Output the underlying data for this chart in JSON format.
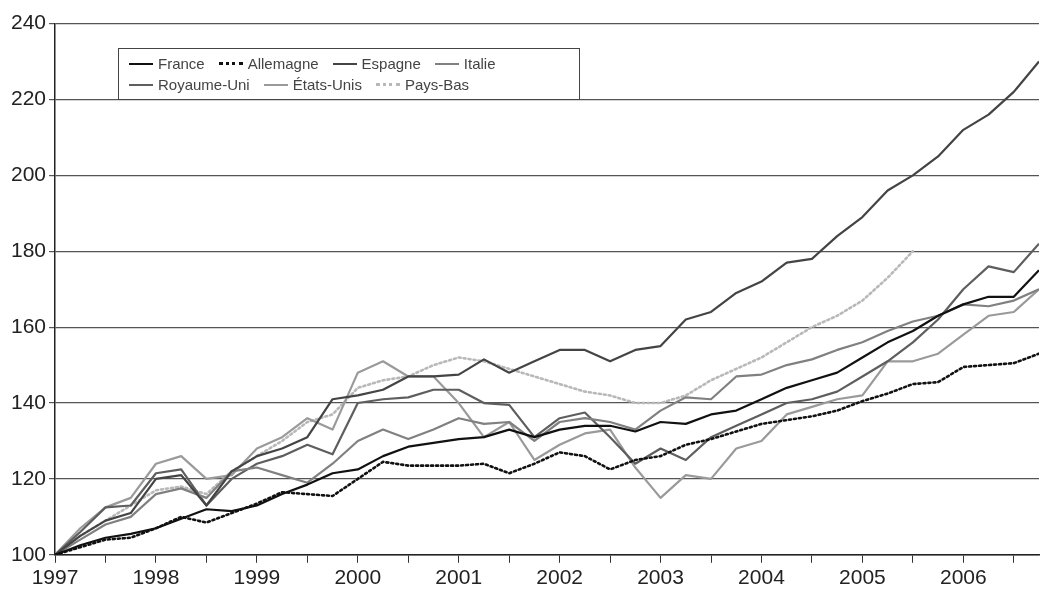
{
  "chart_data": {
    "type": "line",
    "x": [
      1997,
      1997.25,
      1997.5,
      1997.75,
      1998,
      1998.25,
      1998.5,
      1998.75,
      1999,
      1999.25,
      1999.5,
      1999.75,
      2000,
      2000.25,
      2000.5,
      2000.75,
      2001,
      2001.25,
      2001.5,
      2001.75,
      2002,
      2002.25,
      2002.5,
      2002.75,
      2003,
      2003.25,
      2003.5,
      2003.75,
      2004,
      2004.25,
      2004.5,
      2004.75,
      2005,
      2005.25,
      2005.5,
      2005.75,
      2006,
      2006.25,
      2006.5,
      2006.75
    ],
    "series": [
      {
        "name": "France",
        "color": "#111111",
        "line_style": "solid",
        "values": [
          100,
          102.5,
          104.5,
          105.5,
          107,
          109.5,
          112,
          111.5,
          113,
          116,
          118.5,
          121.5,
          122.5,
          126,
          128.5,
          129.5,
          130.5,
          131,
          133,
          131,
          133,
          134,
          134,
          132.5,
          135,
          134.5,
          137,
          138,
          141,
          144,
          146,
          148,
          152,
          156,
          159,
          163,
          166,
          168,
          168,
          175
        ]
      },
      {
        "name": "Allemagne",
        "color": "#111111",
        "line_style": "dotted",
        "values": [
          100,
          102,
          104,
          104.5,
          107,
          110,
          108.5,
          111,
          113.5,
          116.5,
          116,
          115.5,
          120,
          124.5,
          123.5,
          123.5,
          123.5,
          124,
          121.5,
          124,
          127,
          126,
          122.5,
          125,
          126,
          129,
          130.5,
          132.5,
          134.5,
          135.5,
          136.5,
          138,
          140.5,
          142.5,
          145,
          145.5,
          149.5,
          150,
          150.5,
          153
        ]
      },
      {
        "name": "Espagne",
        "color": "#444444",
        "line_style": "solid",
        "values": [
          100,
          105,
          109,
          111,
          120,
          121,
          113,
          122,
          126,
          128,
          131,
          141,
          142,
          143.5,
          147,
          147,
          147.5,
          151.5,
          148,
          151,
          154,
          154,
          151,
          154,
          155,
          162,
          164,
          169,
          172,
          177,
          178,
          184,
          189,
          196,
          200,
          205,
          212,
          216,
          222,
          230
        ]
      },
      {
        "name": "Italie",
        "color": "#808080",
        "line_style": "solid",
        "values": [
          100,
          104,
          108,
          110,
          116,
          117.5,
          115,
          122,
          123,
          121,
          119,
          124,
          130,
          133,
          130.5,
          133,
          136,
          134.5,
          135,
          130,
          135,
          136,
          135,
          133,
          138,
          141.5,
          141,
          147,
          147.5,
          150,
          151.5,
          154,
          156,
          159,
          161.5,
          163,
          166,
          165.5,
          167,
          170
        ]
      },
      {
        "name": "Royaume-Uni",
        "color": "#5e5e5e",
        "line_style": "solid",
        "values": [
          100,
          106,
          112.5,
          113,
          121.5,
          122.5,
          113,
          120,
          124,
          126,
          129,
          126.5,
          140,
          141,
          141.5,
          143.5,
          143.5,
          140,
          139.5,
          131,
          136,
          137.5,
          131,
          124,
          128,
          125,
          131,
          134,
          137,
          140,
          141,
          143,
          147,
          151,
          156,
          162,
          170,
          176,
          174.5,
          182
        ]
      },
      {
        "name": "États-Unis",
        "color": "#9a9a9a",
        "line_style": "solid",
        "values": [
          100,
          107,
          112.5,
          115,
          124,
          126,
          120,
          121,
          128,
          131,
          136,
          133,
          148,
          151,
          147,
          147,
          140,
          131,
          135,
          125,
          129,
          132,
          133,
          123,
          115,
          121,
          120,
          128,
          130,
          137,
          139,
          141,
          142,
          151,
          151,
          153,
          158,
          163,
          164,
          170
        ]
      },
      {
        "name": "Pays-Bas",
        "color": "#b8b8b8",
        "line_style": "dotted",
        "values": [
          100,
          105,
          109,
          113,
          117,
          118,
          116,
          122,
          126,
          130,
          135,
          137,
          144,
          146,
          147,
          150,
          152,
          151,
          149,
          147,
          145,
          143,
          142,
          140,
          140,
          142,
          146,
          149,
          152,
          156,
          160,
          163,
          167,
          173,
          180,
          null,
          null,
          null,
          null,
          null
        ]
      }
    ],
    "xlim": [
      1997,
      2006.75
    ],
    "xticks": [
      1997,
      {
        "value": 1997.5,
        "label": null
      },
      1998,
      {
        "value": 1998.5,
        "label": null
      },
      1999,
      {
        "value": 1999.5,
        "label": null
      },
      2000,
      {
        "value": 2000.5,
        "label": null
      },
      2001,
      {
        "value": 2001.5,
        "label": null
      },
      2002,
      {
        "value": 2002.5,
        "label": null
      },
      2003,
      {
        "value": 2003.5,
        "label": null
      },
      2004,
      {
        "value": 2004.5,
        "label": null
      },
      2005,
      {
        "value": 2005.5,
        "label": null
      },
      2006,
      {
        "value": 2006.5,
        "label": null
      }
    ],
    "ylim": [
      100,
      240
    ],
    "yticks": [
      100,
      120,
      140,
      160,
      180,
      200,
      220,
      240
    ],
    "grid": "y",
    "legend": "top left",
    "marker": "none"
  }
}
